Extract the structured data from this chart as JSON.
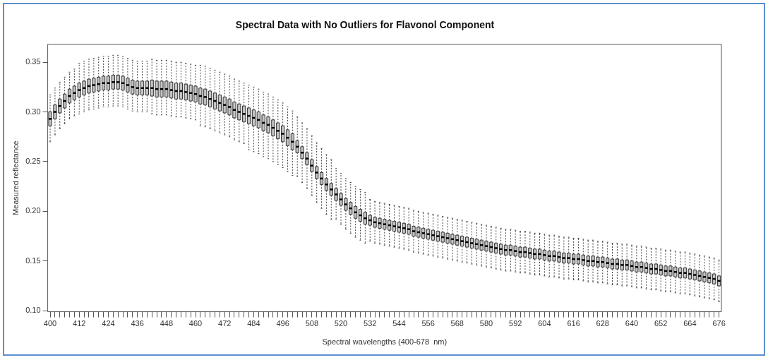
{
  "chart_data": {
    "type": "box",
    "title": "Spectral Data with No Outliers for Flavonol Component",
    "xlabel": "Spectral wavelengths (400-678  nm)",
    "ylabel": "Measured reflectance",
    "categories": [
      "400",
      null,
      null,
      null,
      null,
      null,
      "412",
      null,
      null,
      null,
      null,
      null,
      "424",
      null,
      null,
      null,
      null,
      null,
      "436",
      null,
      null,
      null,
      null,
      null,
      "448",
      null,
      null,
      null,
      null,
      null,
      "460",
      null,
      null,
      null,
      null,
      null,
      "472",
      null,
      null,
      null,
      null,
      null,
      "484",
      null,
      null,
      null,
      null,
      null,
      "496",
      null,
      null,
      null,
      null,
      null,
      "508",
      null,
      null,
      null,
      null,
      null,
      "520",
      null,
      null,
      null,
      null,
      null,
      "532",
      null,
      null,
      null,
      null,
      null,
      "544",
      null,
      null,
      null,
      null,
      null,
      "556",
      null,
      null,
      null,
      null,
      null,
      "568",
      null,
      null,
      null,
      null,
      null,
      "580",
      null,
      null,
      null,
      null,
      null,
      "592",
      null,
      null,
      null,
      null,
      null,
      "604",
      null,
      null,
      null,
      null,
      null,
      "616",
      null,
      null,
      null,
      null,
      null,
      "628",
      null,
      null,
      null,
      null,
      null,
      "640",
      null,
      null,
      null,
      null,
      null,
      "652",
      null,
      null,
      null,
      null,
      null,
      "664",
      null,
      null,
      null,
      null,
      null,
      "676"
    ],
    "ylim": [
      0.099,
      0.368
    ],
    "yticks": [
      {
        "value": 0.1,
        "label": "0.10"
      },
      {
        "value": 0.15,
        "label": "0.15"
      },
      {
        "value": 0.2,
        "label": "0.20"
      },
      {
        "value": 0.25,
        "label": "0.25"
      },
      {
        "value": 0.3,
        "label": "0.30"
      },
      {
        "value": 0.35,
        "label": "0.35"
      }
    ],
    "boxes": [
      {
        "low": 0.27,
        "q1": 0.286,
        "median": 0.293,
        "q3": 0.3,
        "high": 0.317
      },
      {
        "low": 0.277,
        "q1": 0.293,
        "median": 0.3,
        "q3": 0.307,
        "high": 0.324
      },
      {
        "low": 0.283,
        "q1": 0.299,
        "median": 0.306,
        "q3": 0.313,
        "high": 0.33
      },
      {
        "low": 0.288,
        "q1": 0.304,
        "median": 0.311,
        "q3": 0.318,
        "high": 0.335
      },
      {
        "low": 0.293,
        "q1": 0.309,
        "median": 0.316,
        "q3": 0.323,
        "high": 0.34
      },
      {
        "low": 0.296,
        "q1": 0.312,
        "median": 0.319,
        "q3": 0.326,
        "high": 0.343
      },
      {
        "low": 0.298,
        "q1": 0.315,
        "median": 0.322,
        "q3": 0.329,
        "high": 0.349
      },
      {
        "low": 0.3,
        "q1": 0.317,
        "median": 0.324,
        "q3": 0.331,
        "high": 0.351
      },
      {
        "low": 0.302,
        "q1": 0.319,
        "median": 0.326,
        "q3": 0.333,
        "high": 0.353
      },
      {
        "low": 0.303,
        "q1": 0.32,
        "median": 0.327,
        "q3": 0.334,
        "high": 0.354
      },
      {
        "low": 0.304,
        "q1": 0.321,
        "median": 0.328,
        "q3": 0.335,
        "high": 0.355
      },
      {
        "low": 0.305,
        "q1": 0.322,
        "median": 0.329,
        "q3": 0.336,
        "high": 0.356
      },
      {
        "low": 0.305,
        "q1": 0.322,
        "median": 0.329,
        "q3": 0.336,
        "high": 0.356
      },
      {
        "low": 0.306,
        "q1": 0.323,
        "median": 0.33,
        "q3": 0.337,
        "high": 0.357
      },
      {
        "low": 0.306,
        "q1": 0.323,
        "median": 0.33,
        "q3": 0.337,
        "high": 0.357
      },
      {
        "low": 0.305,
        "q1": 0.322,
        "median": 0.329,
        "q3": 0.336,
        "high": 0.356
      },
      {
        "low": 0.303,
        "q1": 0.32,
        "median": 0.327,
        "q3": 0.334,
        "high": 0.354
      },
      {
        "low": 0.301,
        "q1": 0.318,
        "median": 0.325,
        "q3": 0.332,
        "high": 0.352
      },
      {
        "low": 0.3,
        "q1": 0.317,
        "median": 0.324,
        "q3": 0.331,
        "high": 0.351
      },
      {
        "low": 0.3,
        "q1": 0.317,
        "median": 0.324,
        "q3": 0.331,
        "high": 0.351
      },
      {
        "low": 0.3,
        "q1": 0.317,
        "median": 0.324,
        "q3": 0.331,
        "high": 0.351
      },
      {
        "low": 0.298,
        "q1": 0.316,
        "median": 0.324,
        "q3": 0.332,
        "high": 0.353
      },
      {
        "low": 0.297,
        "q1": 0.315,
        "median": 0.323,
        "q3": 0.331,
        "high": 0.352
      },
      {
        "low": 0.297,
        "q1": 0.315,
        "median": 0.323,
        "q3": 0.331,
        "high": 0.352
      },
      {
        "low": 0.297,
        "q1": 0.315,
        "median": 0.323,
        "q3": 0.331,
        "high": 0.352
      },
      {
        "low": 0.296,
        "q1": 0.314,
        "median": 0.322,
        "q3": 0.33,
        "high": 0.351
      },
      {
        "low": 0.295,
        "q1": 0.313,
        "median": 0.321,
        "q3": 0.329,
        "high": 0.35
      },
      {
        "low": 0.295,
        "q1": 0.313,
        "median": 0.321,
        "q3": 0.329,
        "high": 0.35
      },
      {
        "low": 0.294,
        "q1": 0.312,
        "median": 0.32,
        "q3": 0.328,
        "high": 0.349
      },
      {
        "low": 0.293,
        "q1": 0.311,
        "median": 0.319,
        "q3": 0.327,
        "high": 0.348
      },
      {
        "low": 0.292,
        "q1": 0.31,
        "median": 0.318,
        "q3": 0.326,
        "high": 0.347
      },
      {
        "low": 0.286,
        "q1": 0.308,
        "median": 0.316,
        "q3": 0.324,
        "high": 0.347
      },
      {
        "low": 0.285,
        "q1": 0.307,
        "median": 0.315,
        "q3": 0.323,
        "high": 0.346
      },
      {
        "low": 0.283,
        "q1": 0.305,
        "median": 0.313,
        "q3": 0.321,
        "high": 0.344
      },
      {
        "low": 0.281,
        "q1": 0.303,
        "median": 0.311,
        "q3": 0.319,
        "high": 0.342
      },
      {
        "low": 0.279,
        "q1": 0.301,
        "median": 0.309,
        "q3": 0.317,
        "high": 0.34
      },
      {
        "low": 0.277,
        "q1": 0.299,
        "median": 0.307,
        "q3": 0.315,
        "high": 0.338
      },
      {
        "low": 0.275,
        "q1": 0.297,
        "median": 0.305,
        "q3": 0.313,
        "high": 0.336
      },
      {
        "low": 0.272,
        "q1": 0.294,
        "median": 0.302,
        "q3": 0.31,
        "high": 0.333
      },
      {
        "low": 0.27,
        "q1": 0.292,
        "median": 0.3,
        "q3": 0.308,
        "high": 0.331
      },
      {
        "low": 0.268,
        "q1": 0.29,
        "median": 0.298,
        "q3": 0.306,
        "high": 0.329
      },
      {
        "low": 0.262,
        "q1": 0.288,
        "median": 0.296,
        "q3": 0.304,
        "high": 0.327
      },
      {
        "low": 0.26,
        "q1": 0.286,
        "median": 0.294,
        "q3": 0.302,
        "high": 0.325
      },
      {
        "low": 0.258,
        "q1": 0.284,
        "median": 0.292,
        "q3": 0.3,
        "high": 0.323
      },
      {
        "low": 0.255,
        "q1": 0.281,
        "median": 0.289,
        "q3": 0.297,
        "high": 0.32
      },
      {
        "low": 0.253,
        "q1": 0.279,
        "median": 0.287,
        "q3": 0.295,
        "high": 0.318
      },
      {
        "low": 0.25,
        "q1": 0.276,
        "median": 0.284,
        "q3": 0.292,
        "high": 0.315
      },
      {
        "low": 0.247,
        "q1": 0.273,
        "median": 0.281,
        "q3": 0.289,
        "high": 0.312
      },
      {
        "low": 0.244,
        "q1": 0.27,
        "median": 0.278,
        "q3": 0.286,
        "high": 0.309
      },
      {
        "low": 0.24,
        "q1": 0.266,
        "median": 0.274,
        "q3": 0.282,
        "high": 0.305
      },
      {
        "low": 0.236,
        "q1": 0.262,
        "median": 0.27,
        "q3": 0.278,
        "high": 0.301
      },
      {
        "low": 0.235,
        "q1": 0.259,
        "median": 0.265,
        "q3": 0.271,
        "high": 0.295
      },
      {
        "low": 0.229,
        "q1": 0.253,
        "median": 0.259,
        "q3": 0.265,
        "high": 0.289
      },
      {
        "low": 0.223,
        "q1": 0.247,
        "median": 0.253,
        "q3": 0.259,
        "high": 0.283
      },
      {
        "low": 0.216,
        "q1": 0.24,
        "median": 0.246,
        "q3": 0.252,
        "high": 0.276
      },
      {
        "low": 0.209,
        "q1": 0.233,
        "median": 0.239,
        "q3": 0.245,
        "high": 0.269
      },
      {
        "low": 0.203,
        "q1": 0.227,
        "median": 0.233,
        "q3": 0.239,
        "high": 0.263
      },
      {
        "low": 0.197,
        "q1": 0.221,
        "median": 0.227,
        "q3": 0.233,
        "high": 0.257
      },
      {
        "low": 0.192,
        "q1": 0.216,
        "median": 0.222,
        "q3": 0.228,
        "high": 0.252
      },
      {
        "low": 0.192,
        "q1": 0.211,
        "median": 0.217,
        "q3": 0.223,
        "high": 0.243
      },
      {
        "low": 0.187,
        "q1": 0.206,
        "median": 0.212,
        "q3": 0.218,
        "high": 0.238
      },
      {
        "low": 0.182,
        "q1": 0.201,
        "median": 0.207,
        "q3": 0.213,
        "high": 0.233
      },
      {
        "low": 0.178,
        "q1": 0.197,
        "median": 0.203,
        "q3": 0.209,
        "high": 0.229
      },
      {
        "low": 0.174,
        "q1": 0.193,
        "median": 0.199,
        "q3": 0.205,
        "high": 0.225
      },
      {
        "low": 0.171,
        "q1": 0.19,
        "median": 0.196,
        "q3": 0.202,
        "high": 0.222
      },
      {
        "low": 0.168,
        "q1": 0.187,
        "median": 0.193,
        "q3": 0.199,
        "high": 0.219
      },
      {
        "low": 0.17,
        "q1": 0.186,
        "median": 0.191,
        "q3": 0.196,
        "high": 0.212
      },
      {
        "low": 0.168,
        "q1": 0.184,
        "median": 0.189,
        "q3": 0.194,
        "high": 0.21
      },
      {
        "low": 0.167,
        "q1": 0.183,
        "median": 0.188,
        "q3": 0.193,
        "high": 0.209
      },
      {
        "low": 0.166,
        "q1": 0.182,
        "median": 0.187,
        "q3": 0.192,
        "high": 0.208
      },
      {
        "low": 0.165,
        "q1": 0.181,
        "median": 0.186,
        "q3": 0.191,
        "high": 0.207
      },
      {
        "low": 0.164,
        "q1": 0.18,
        "median": 0.185,
        "q3": 0.19,
        "high": 0.206
      },
      {
        "low": 0.163,
        "q1": 0.179,
        "median": 0.184,
        "q3": 0.189,
        "high": 0.205
      },
      {
        "low": 0.162,
        "q1": 0.178,
        "median": 0.183,
        "q3": 0.188,
        "high": 0.204
      },
      {
        "low": 0.161,
        "q1": 0.177,
        "median": 0.182,
        "q3": 0.187,
        "high": 0.203
      },
      {
        "low": 0.159,
        "q1": 0.175,
        "median": 0.18,
        "q3": 0.185,
        "high": 0.201
      },
      {
        "low": 0.158,
        "q1": 0.174,
        "median": 0.179,
        "q3": 0.184,
        "high": 0.2
      },
      {
        "low": 0.157,
        "q1": 0.173,
        "median": 0.178,
        "q3": 0.183,
        "high": 0.199
      },
      {
        "low": 0.156,
        "q1": 0.172,
        "median": 0.177,
        "q3": 0.182,
        "high": 0.198
      },
      {
        "low": 0.155,
        "q1": 0.171,
        "median": 0.176,
        "q3": 0.181,
        "high": 0.197
      },
      {
        "low": 0.154,
        "q1": 0.17,
        "median": 0.175,
        "q3": 0.18,
        "high": 0.196
      },
      {
        "low": 0.153,
        "q1": 0.169,
        "median": 0.174,
        "q3": 0.179,
        "high": 0.195
      },
      {
        "low": 0.152,
        "q1": 0.168,
        "median": 0.173,
        "q3": 0.178,
        "high": 0.194
      },
      {
        "low": 0.151,
        "q1": 0.167,
        "median": 0.172,
        "q3": 0.177,
        "high": 0.193
      },
      {
        "low": 0.15,
        "q1": 0.166,
        "median": 0.171,
        "q3": 0.176,
        "high": 0.192
      },
      {
        "low": 0.149,
        "q1": 0.165,
        "median": 0.17,
        "q3": 0.175,
        "high": 0.191
      },
      {
        "low": 0.148,
        "q1": 0.164,
        "median": 0.169,
        "q3": 0.174,
        "high": 0.19
      },
      {
        "low": 0.147,
        "q1": 0.163,
        "median": 0.168,
        "q3": 0.173,
        "high": 0.189
      },
      {
        "low": 0.146,
        "q1": 0.162,
        "median": 0.167,
        "q3": 0.172,
        "high": 0.188
      },
      {
        "low": 0.145,
        "q1": 0.161,
        "median": 0.166,
        "q3": 0.171,
        "high": 0.187
      },
      {
        "low": 0.144,
        "q1": 0.16,
        "median": 0.165,
        "q3": 0.17,
        "high": 0.186
      },
      {
        "low": 0.143,
        "q1": 0.159,
        "median": 0.164,
        "q3": 0.169,
        "high": 0.185
      },
      {
        "low": 0.142,
        "q1": 0.158,
        "median": 0.163,
        "q3": 0.168,
        "high": 0.184
      },
      {
        "low": 0.141,
        "q1": 0.157,
        "median": 0.162,
        "q3": 0.167,
        "high": 0.183
      },
      {
        "low": 0.14,
        "q1": 0.156,
        "median": 0.161,
        "q3": 0.166,
        "high": 0.182
      },
      {
        "low": 0.14,
        "q1": 0.156,
        "median": 0.161,
        "q3": 0.166,
        "high": 0.182
      },
      {
        "low": 0.139,
        "q1": 0.155,
        "median": 0.16,
        "q3": 0.165,
        "high": 0.181
      },
      {
        "low": 0.138,
        "q1": 0.154,
        "median": 0.159,
        "q3": 0.164,
        "high": 0.18
      },
      {
        "low": 0.138,
        "q1": 0.154,
        "median": 0.159,
        "q3": 0.164,
        "high": 0.18
      },
      {
        "low": 0.137,
        "q1": 0.153,
        "median": 0.158,
        "q3": 0.163,
        "high": 0.179
      },
      {
        "low": 0.136,
        "q1": 0.152,
        "median": 0.157,
        "q3": 0.162,
        "high": 0.178
      },
      {
        "low": 0.136,
        "q1": 0.152,
        "median": 0.157,
        "q3": 0.162,
        "high": 0.178
      },
      {
        "low": 0.135,
        "q1": 0.151,
        "median": 0.156,
        "q3": 0.161,
        "high": 0.177
      },
      {
        "low": 0.134,
        "q1": 0.15,
        "median": 0.155,
        "q3": 0.16,
        "high": 0.176
      },
      {
        "low": 0.134,
        "q1": 0.15,
        "median": 0.155,
        "q3": 0.16,
        "high": 0.176
      },
      {
        "low": 0.133,
        "q1": 0.149,
        "median": 0.154,
        "q3": 0.159,
        "high": 0.175
      },
      {
        "low": 0.132,
        "q1": 0.148,
        "median": 0.153,
        "q3": 0.158,
        "high": 0.174
      },
      {
        "low": 0.132,
        "q1": 0.148,
        "median": 0.153,
        "q3": 0.158,
        "high": 0.174
      },
      {
        "low": 0.131,
        "q1": 0.147,
        "median": 0.152,
        "q3": 0.157,
        "high": 0.173
      },
      {
        "low": 0.131,
        "q1": 0.147,
        "median": 0.152,
        "q3": 0.157,
        "high": 0.173
      },
      {
        "low": 0.13,
        "q1": 0.146,
        "median": 0.151,
        "q3": 0.156,
        "high": 0.172
      },
      {
        "low": 0.129,
        "q1": 0.145,
        "median": 0.15,
        "q3": 0.155,
        "high": 0.171
      },
      {
        "low": 0.129,
        "q1": 0.145,
        "median": 0.15,
        "q3": 0.155,
        "high": 0.171
      },
      {
        "low": 0.128,
        "q1": 0.144,
        "median": 0.149,
        "q3": 0.154,
        "high": 0.17
      },
      {
        "low": 0.128,
        "q1": 0.144,
        "median": 0.149,
        "q3": 0.154,
        "high": 0.17
      },
      {
        "low": 0.127,
        "q1": 0.143,
        "median": 0.148,
        "q3": 0.153,
        "high": 0.169
      },
      {
        "low": 0.126,
        "q1": 0.142,
        "median": 0.147,
        "q3": 0.152,
        "high": 0.168
      },
      {
        "low": 0.126,
        "q1": 0.142,
        "median": 0.147,
        "q3": 0.152,
        "high": 0.168
      },
      {
        "low": 0.125,
        "q1": 0.141,
        "median": 0.146,
        "q3": 0.151,
        "high": 0.167
      },
      {
        "low": 0.125,
        "q1": 0.141,
        "median": 0.146,
        "q3": 0.151,
        "high": 0.167
      },
      {
        "low": 0.124,
        "q1": 0.14,
        "median": 0.145,
        "q3": 0.15,
        "high": 0.166
      },
      {
        "low": 0.123,
        "q1": 0.139,
        "median": 0.144,
        "q3": 0.149,
        "high": 0.165
      },
      {
        "low": 0.123,
        "q1": 0.139,
        "median": 0.144,
        "q3": 0.149,
        "high": 0.165
      },
      {
        "low": 0.122,
        "q1": 0.138,
        "median": 0.143,
        "q3": 0.148,
        "high": 0.164
      },
      {
        "low": 0.121,
        "q1": 0.137,
        "median": 0.142,
        "q3": 0.147,
        "high": 0.163
      },
      {
        "low": 0.121,
        "q1": 0.137,
        "median": 0.142,
        "q3": 0.147,
        "high": 0.163
      },
      {
        "low": 0.12,
        "q1": 0.136,
        "median": 0.141,
        "q3": 0.146,
        "high": 0.162
      },
      {
        "low": 0.119,
        "q1": 0.135,
        "median": 0.14,
        "q3": 0.145,
        "high": 0.161
      },
      {
        "low": 0.119,
        "q1": 0.135,
        "median": 0.14,
        "q3": 0.145,
        "high": 0.161
      },
      {
        "low": 0.118,
        "q1": 0.134,
        "median": 0.139,
        "q3": 0.144,
        "high": 0.16
      },
      {
        "low": 0.117,
        "q1": 0.133,
        "median": 0.138,
        "q3": 0.143,
        "high": 0.159
      },
      {
        "low": 0.117,
        "q1": 0.133,
        "median": 0.138,
        "q3": 0.143,
        "high": 0.159
      },
      {
        "low": 0.116,
        "q1": 0.132,
        "median": 0.137,
        "q3": 0.142,
        "high": 0.158
      },
      {
        "low": 0.115,
        "q1": 0.131,
        "median": 0.136,
        "q3": 0.141,
        "high": 0.157
      },
      {
        "low": 0.114,
        "q1": 0.13,
        "median": 0.135,
        "q3": 0.14,
        "high": 0.156
      },
      {
        "low": 0.113,
        "q1": 0.129,
        "median": 0.134,
        "q3": 0.139,
        "high": 0.155
      },
      {
        "low": 0.112,
        "q1": 0.128,
        "median": 0.133,
        "q3": 0.138,
        "high": 0.154
      },
      {
        "low": 0.111,
        "q1": 0.127,
        "median": 0.132,
        "q3": 0.137,
        "high": 0.153
      },
      {
        "low": 0.109,
        "q1": 0.125,
        "median": 0.13,
        "q3": 0.135,
        "high": 0.151
      }
    ]
  }
}
